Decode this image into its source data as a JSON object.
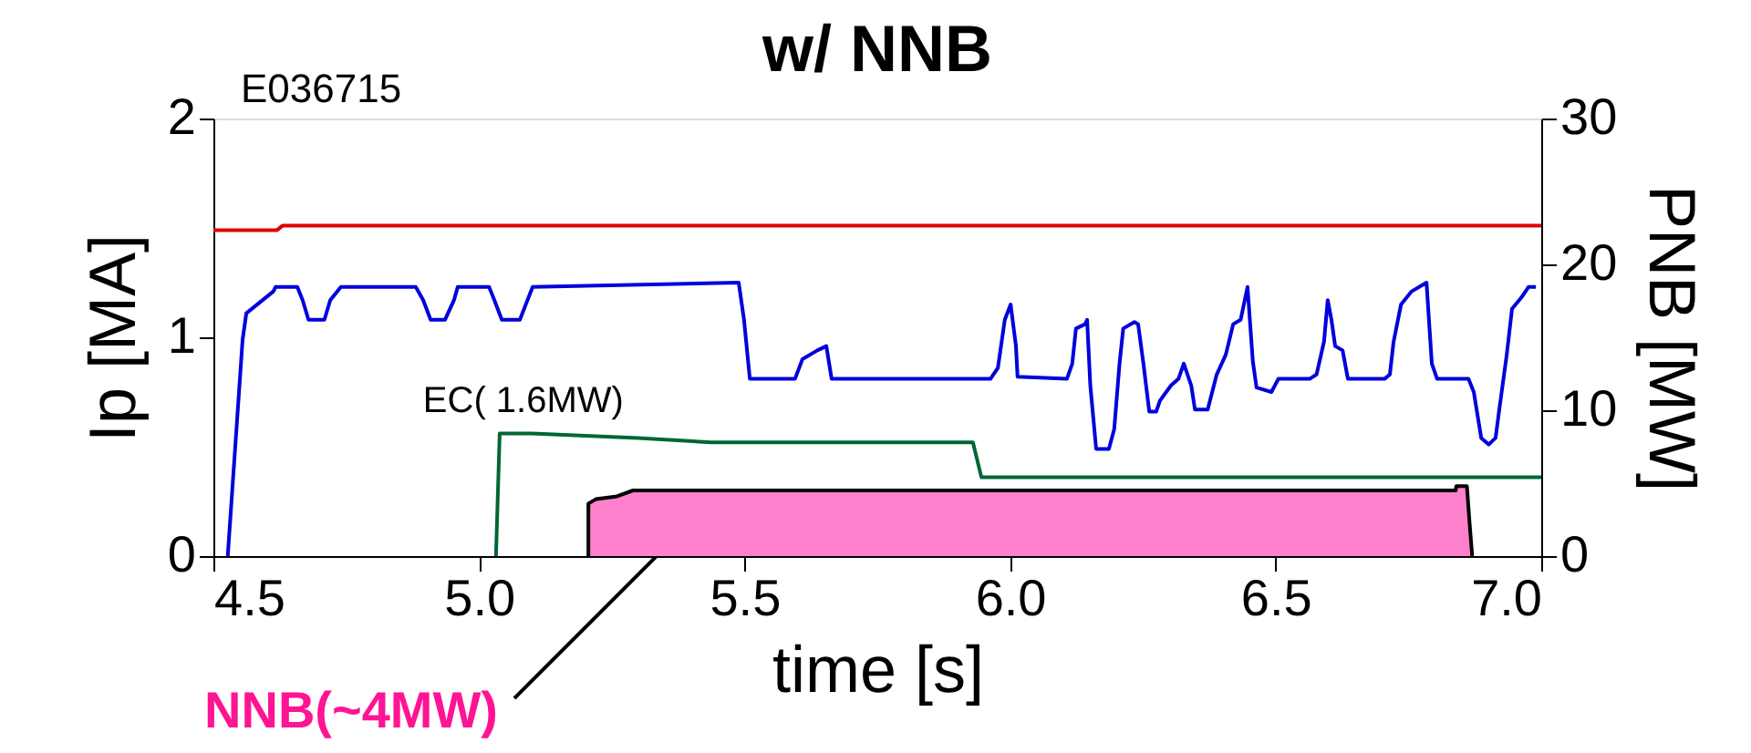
{
  "chart_data": {
    "type": "line",
    "title": "w/ NNB",
    "xlabel": "time [s]",
    "ylabel": "Ip [MA]",
    "y2label": "PNB [MW]",
    "xlim": [
      4.5,
      7.0
    ],
    "xticks": [
      4.5,
      {
        "value": 5,
        "label": "5.0"
      },
      5.5,
      {
        "value": 6,
        "label": "6.0"
      },
      6.5,
      {
        "value": 7,
        "label": "7.0"
      }
    ],
    "ylim": [
      0,
      2
    ],
    "yticks": [
      0,
      1,
      2
    ],
    "y2lim": [
      0,
      30
    ],
    "y2ticks": [
      0,
      10,
      20,
      30
    ],
    "grid": false,
    "legend": false,
    "annotations": [
      "E036715",
      "EC(  1.6MW)",
      "NNB(~4MW)"
    ],
    "series": [
      {
        "type": "area",
        "axis": "y2",
        "color": "#ff80cc",
        "x": [
          5.206,
          5.206,
          5.22,
          5.26,
          5.29,
          6.839,
          6.84,
          6.86,
          6.865,
          6.87
        ],
        "values": [
          0,
          3.6,
          3.9,
          4.1,
          4.5,
          4.5,
          4.8,
          4.8,
          2.3,
          0
        ]
      },
      {
        "color": "#e00000",
        "x": [
          4.5,
          4.62,
          4.63,
          7.0
        ],
        "values": [
          1.49,
          1.49,
          1.51,
          1.51
        ]
      },
      {
        "color": "#006633",
        "x": [
          5.032,
          5.039,
          5.1,
          5.3,
          5.437,
          5.93,
          5.946,
          7.0
        ],
        "values": [
          0,
          0.56,
          0.56,
          0.54,
          0.52,
          0.52,
          0.36,
          0.36
        ]
      },
      {
        "color": "#0000dd",
        "x": [
          4.527,
          4.555,
          4.562,
          4.613,
          4.617,
          4.658,
          4.668,
          4.679,
          4.709,
          4.72,
          4.74,
          4.881,
          4.895,
          4.909,
          4.936,
          4.953,
          4.96,
          5.019,
          5.029,
          5.043,
          5.077,
          5.101,
          5.489,
          5.499,
          5.51,
          5.595,
          5.609,
          5.637,
          5.654,
          5.664,
          5.963,
          5.977,
          5.99,
          6.001,
          6.011,
          6.014,
          6.107,
          6.117,
          6.124,
          6.141,
          6.145,
          6.151,
          6.162,
          6.186,
          6.196,
          6.206,
          6.213,
          6.234,
          6.241,
          6.251,
          6.262,
          6.275,
          6.282,
          6.303,
          6.317,
          6.327,
          6.341,
          6.348,
          6.372,
          6.389,
          6.406,
          6.42,
          6.434,
          6.447,
          6.457,
          6.464,
          6.492,
          6.505,
          6.564,
          6.577,
          6.591,
          6.598,
          6.605,
          6.612,
          6.626,
          6.636,
          6.705,
          6.715,
          6.722,
          6.736,
          6.756,
          6.784,
          6.794,
          6.804,
          6.863,
          6.873,
          6.887,
          6.901,
          6.914,
          6.921,
          6.935,
          6.945,
          6.962,
          6.976,
          6.99
        ],
        "values": [
          0,
          0.99,
          1.11,
          1.21,
          1.23,
          1.23,
          1.17,
          1.08,
          1.08,
          1.17,
          1.23,
          1.23,
          1.17,
          1.08,
          1.08,
          1.17,
          1.23,
          1.23,
          1.17,
          1.08,
          1.08,
          1.23,
          1.25,
          1.08,
          0.81,
          0.81,
          0.9,
          0.94,
          0.96,
          0.81,
          0.81,
          0.86,
          1.08,
          1.15,
          0.96,
          0.82,
          0.81,
          0.88,
          1.04,
          1.06,
          1.08,
          0.78,
          0.49,
          0.49,
          0.58,
          0.88,
          1.04,
          1.07,
          1.06,
          0.88,
          0.66,
          0.66,
          0.71,
          0.78,
          0.81,
          0.88,
          0.78,
          0.67,
          0.67,
          0.83,
          0.92,
          1.06,
          1.08,
          1.23,
          0.89,
          0.77,
          0.75,
          0.81,
          0.81,
          0.83,
          0.98,
          1.17,
          1.08,
          0.96,
          0.94,
          0.81,
          0.81,
          0.83,
          0.98,
          1.15,
          1.21,
          1.25,
          0.88,
          0.81,
          0.81,
          0.75,
          0.54,
          0.51,
          0.54,
          0.67,
          0.92,
          1.13,
          1.18,
          1.23,
          1.23
        ]
      }
    ]
  }
}
